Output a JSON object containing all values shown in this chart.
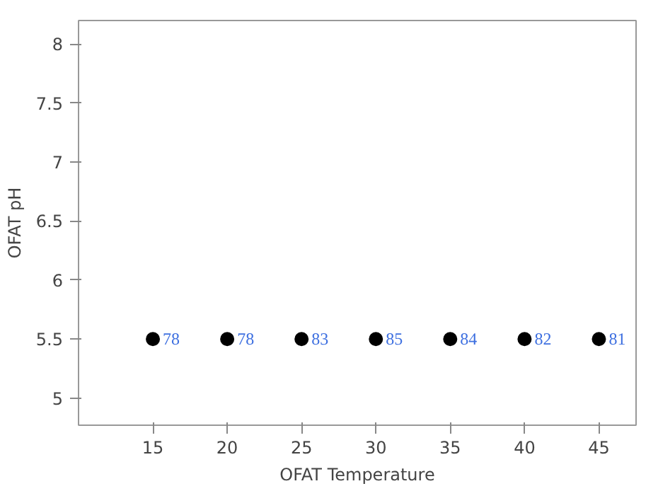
{
  "chart_data": {
    "type": "scatter",
    "xlabel": "OFAT Temperature",
    "ylabel": "OFAT pH",
    "x": [
      15,
      20,
      25,
      30,
      35,
      40,
      45
    ],
    "series": [
      {
        "color": "#000000",
        "values": [
          5.5,
          5.5,
          5.5,
          5.5,
          5.5,
          5.5,
          5.5
        ]
      }
    ],
    "annotations": [
      {
        "text": "78",
        "x": 15,
        "y": 5.5
      },
      {
        "text": "78",
        "x": 20,
        "y": 5.5
      },
      {
        "text": "83",
        "x": 25,
        "y": 5.5
      },
      {
        "text": "85",
        "x": 30,
        "y": 5.5
      },
      {
        "text": "84",
        "x": 35,
        "y": 5.5
      },
      {
        "text": "82",
        "x": 40,
        "y": 5.5
      },
      {
        "text": "81",
        "x": 45,
        "y": 5.5
      }
    ],
    "xlim": [
      10,
      47.5
    ],
    "ylim": [
      4.77,
      8.2
    ],
    "xticks": [
      15,
      20,
      25,
      30,
      35,
      40,
      45
    ],
    "yticks": [
      5,
      5.5,
      6,
      6.5,
      7,
      7.5,
      8
    ],
    "marker": "circle"
  }
}
